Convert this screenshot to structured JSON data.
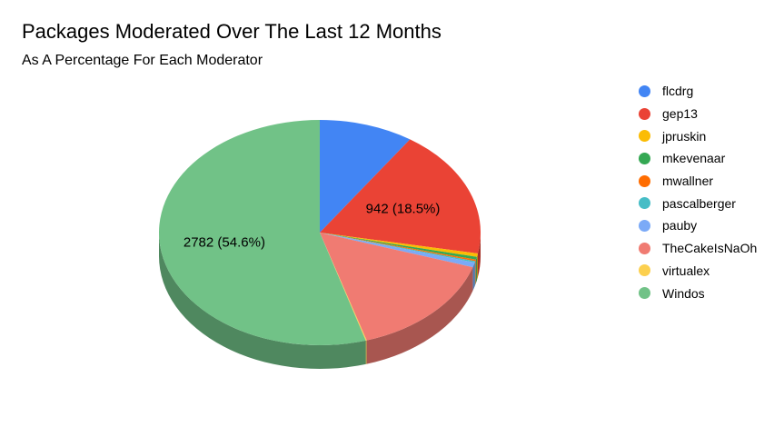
{
  "chart_data": {
    "type": "pie",
    "style": "3d",
    "title": "Packages Moderated Over The Last 12 Months",
    "subtitle": "As A Percentage For Each Moderator",
    "legend_position": "right",
    "series": [
      {
        "name": "flcdrg",
        "value": 483,
        "color": "#4285F4"
      },
      {
        "name": "gep13",
        "value": 942,
        "color": "#EA4335"
      },
      {
        "name": "jpruskin",
        "value": 25,
        "color": "#FBBC04"
      },
      {
        "name": "mkevenaar",
        "value": 20,
        "color": "#34A853"
      },
      {
        "name": "mwallner",
        "value": 12,
        "color": "#FF6D01"
      },
      {
        "name": "pascalberger",
        "value": 10,
        "color": "#46BDC6"
      },
      {
        "name": "pauby",
        "value": 35,
        "color": "#7BAAF7"
      },
      {
        "name": "TheCakeIsNaOh",
        "value": 780,
        "color": "#F07B72"
      },
      {
        "name": "virtualex",
        "value": 5,
        "color": "#FCD04F"
      },
      {
        "name": "Windos",
        "value": 2782,
        "color": "#71C287"
      }
    ],
    "data_labels": [
      {
        "series": "gep13",
        "text": "942 (18.5%)"
      },
      {
        "series": "Windos",
        "text": "2782 (54.6%)"
      }
    ]
  }
}
